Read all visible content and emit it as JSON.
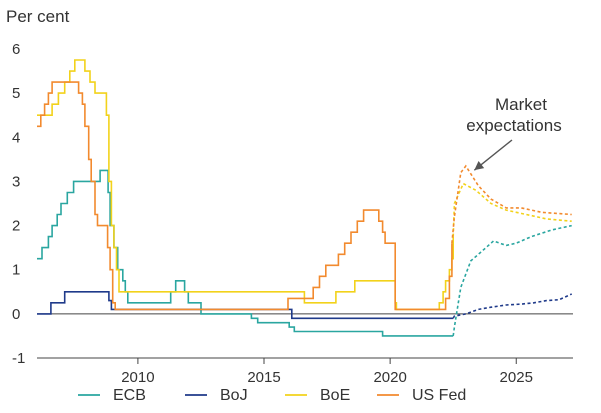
{
  "chart_data": {
    "type": "line",
    "ylabel": "Per cent",
    "ylim": [
      -1,
      6
    ],
    "yticks": [
      -1,
      0,
      1,
      2,
      3,
      4,
      5,
      6
    ],
    "xlim": [
      2006,
      2027.25
    ],
    "xticks": [
      2010,
      2015,
      2020,
      2025
    ],
    "grid": false,
    "legend_placement": "bottom",
    "annotation": {
      "lines": [
        "Market",
        "expectations"
      ],
      "points_to": [
        2023.1,
        3.3
      ]
    },
    "series": [
      {
        "name": "ECB",
        "color": "#2aa6a0",
        "actual": [
          [
            2006,
            1.25
          ],
          [
            2006.2,
            1.5
          ],
          [
            2006.45,
            1.75
          ],
          [
            2006.6,
            2.0
          ],
          [
            2006.8,
            2.25
          ],
          [
            2006.95,
            2.5
          ],
          [
            2007.2,
            2.75
          ],
          [
            2007.45,
            3.0
          ],
          [
            2008.5,
            3.25
          ],
          [
            2008.82,
            2.75
          ],
          [
            2008.9,
            2.0
          ],
          [
            2009.05,
            1.5
          ],
          [
            2009.2,
            1.0
          ],
          [
            2009.4,
            0.75
          ],
          [
            2009.5,
            0.5
          ],
          [
            2009.6,
            0.25
          ],
          [
            2011.3,
            0.5
          ],
          [
            2011.5,
            0.75
          ],
          [
            2011.85,
            0.5
          ],
          [
            2012.0,
            0.25
          ],
          [
            2012.5,
            0.0
          ],
          [
            2014.5,
            -0.1
          ],
          [
            2014.75,
            -0.2
          ],
          [
            2016.0,
            -0.3
          ],
          [
            2016.2,
            -0.4
          ],
          [
            2019.7,
            -0.5
          ],
          [
            2022.5,
            -0.5
          ]
        ],
        "expected": [
          [
            2022.55,
            -0.3
          ],
          [
            2022.8,
            0.6
          ],
          [
            2023.2,
            1.2
          ],
          [
            2023.6,
            1.4
          ],
          [
            2024.1,
            1.65
          ],
          [
            2024.6,
            1.55
          ],
          [
            2025.0,
            1.6
          ],
          [
            2025.6,
            1.75
          ],
          [
            2026.4,
            1.9
          ],
          [
            2027.2,
            2.0
          ]
        ]
      },
      {
        "name": "BoJ",
        "color": "#1f3a8a",
        "actual": [
          [
            2006,
            0.0
          ],
          [
            2006.55,
            0.25
          ],
          [
            2007.1,
            0.5
          ],
          [
            2008.85,
            0.3
          ],
          [
            2008.95,
            0.1
          ],
          [
            2016.1,
            -0.1
          ],
          [
            2022.5,
            -0.1
          ]
        ],
        "expected": [
          [
            2022.55,
            -0.05
          ],
          [
            2023.0,
            0.0
          ],
          [
            2023.5,
            0.1
          ],
          [
            2024.0,
            0.15
          ],
          [
            2024.6,
            0.2
          ],
          [
            2025.2,
            0.22
          ],
          [
            2025.7,
            0.25
          ],
          [
            2026.2,
            0.3
          ],
          [
            2026.7,
            0.32
          ],
          [
            2027.2,
            0.45
          ]
        ]
      },
      {
        "name": "BoE",
        "color": "#f2d21b",
        "actual": [
          [
            2006,
            4.5
          ],
          [
            2006.6,
            4.75
          ],
          [
            2006.85,
            5.0
          ],
          [
            2007.1,
            5.25
          ],
          [
            2007.3,
            5.5
          ],
          [
            2007.5,
            5.75
          ],
          [
            2007.9,
            5.5
          ],
          [
            2008.1,
            5.25
          ],
          [
            2008.3,
            5.0
          ],
          [
            2008.75,
            4.5
          ],
          [
            2008.85,
            3.0
          ],
          [
            2008.95,
            2.0
          ],
          [
            2009.05,
            1.5
          ],
          [
            2009.15,
            1.0
          ],
          [
            2009.25,
            0.5
          ],
          [
            2016.6,
            0.25
          ],
          [
            2017.85,
            0.5
          ],
          [
            2018.6,
            0.75
          ],
          [
            2020.2,
            0.25
          ],
          [
            2020.25,
            0.1
          ],
          [
            2021.95,
            0.25
          ],
          [
            2022.1,
            0.5
          ],
          [
            2022.2,
            0.75
          ],
          [
            2022.35,
            1.0
          ],
          [
            2022.45,
            1.25
          ],
          [
            2022.5,
            1.75
          ]
        ],
        "expected": [
          [
            2022.55,
            2.5
          ],
          [
            2022.9,
            2.95
          ],
          [
            2023.4,
            2.8
          ],
          [
            2024.0,
            2.5
          ],
          [
            2024.6,
            2.35
          ],
          [
            2025.4,
            2.25
          ],
          [
            2026.2,
            2.15
          ],
          [
            2027.2,
            2.1
          ]
        ]
      },
      {
        "name": "US Fed",
        "color": "#f28a2e",
        "actual": [
          [
            2006,
            4.25
          ],
          [
            2006.15,
            4.5
          ],
          [
            2006.3,
            4.75
          ],
          [
            2006.45,
            5.0
          ],
          [
            2006.6,
            5.25
          ],
          [
            2007.65,
            5.0
          ],
          [
            2007.8,
            4.75
          ],
          [
            2007.9,
            4.25
          ],
          [
            2008.05,
            3.5
          ],
          [
            2008.15,
            3.0
          ],
          [
            2008.3,
            2.25
          ],
          [
            2008.4,
            2.0
          ],
          [
            2008.8,
            1.5
          ],
          [
            2008.9,
            1.0
          ],
          [
            2009.0,
            0.25
          ],
          [
            2009.1,
            0.1
          ],
          [
            2015.95,
            0.35
          ],
          [
            2016.95,
            0.6
          ],
          [
            2017.2,
            0.85
          ],
          [
            2017.45,
            1.1
          ],
          [
            2017.95,
            1.35
          ],
          [
            2018.2,
            1.6
          ],
          [
            2018.45,
            1.85
          ],
          [
            2018.7,
            2.1
          ],
          [
            2018.95,
            2.35
          ],
          [
            2019.55,
            2.1
          ],
          [
            2019.7,
            1.85
          ],
          [
            2019.8,
            1.6
          ],
          [
            2020.2,
            0.1
          ],
          [
            2022.2,
            0.35
          ],
          [
            2022.35,
            0.85
          ],
          [
            2022.45,
            1.6
          ]
        ],
        "expected": [
          [
            2022.55,
            2.2
          ],
          [
            2022.8,
            3.2
          ],
          [
            2023.0,
            3.35
          ],
          [
            2023.5,
            2.9
          ],
          [
            2024.0,
            2.6
          ],
          [
            2024.6,
            2.4
          ],
          [
            2025.2,
            2.4
          ],
          [
            2026.0,
            2.3
          ],
          [
            2027.2,
            2.25
          ]
        ]
      }
    ]
  }
}
